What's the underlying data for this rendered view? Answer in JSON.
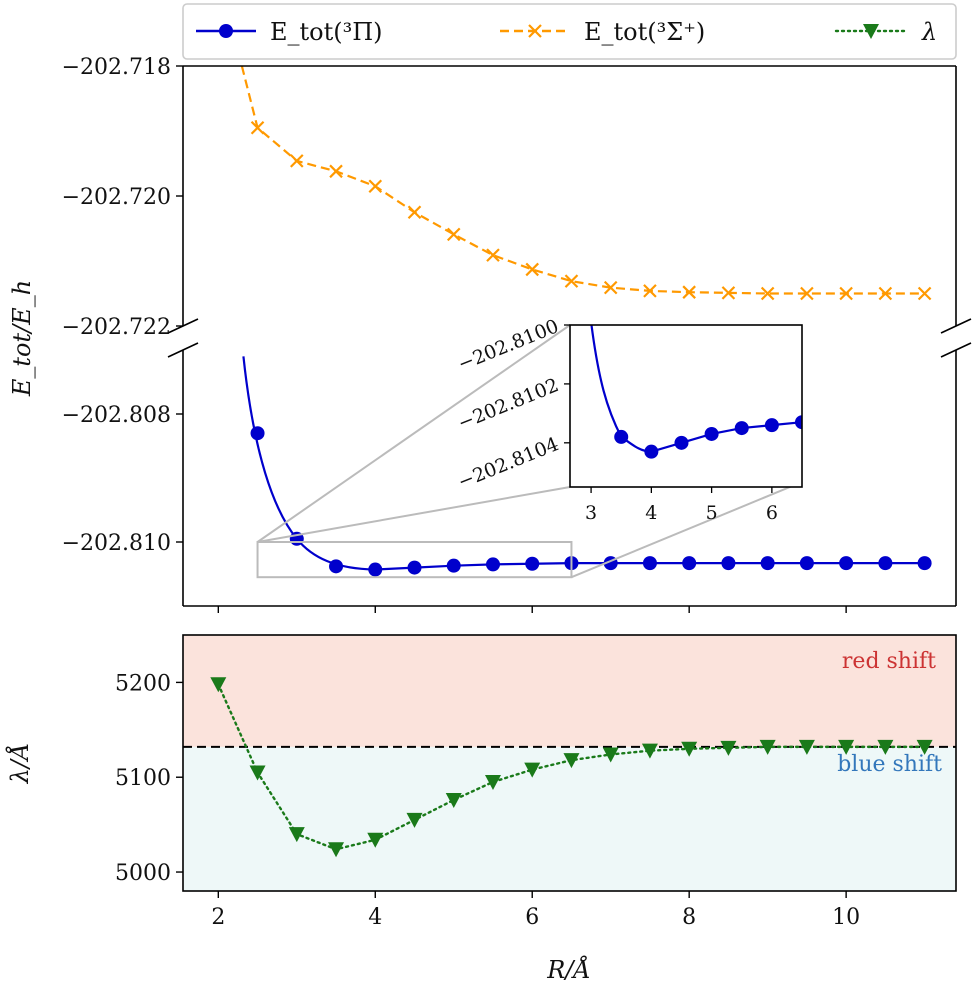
{
  "chart_data": [
    {
      "type": "line",
      "panel": "top",
      "ylabel": "E_tot/E_h",
      "legend": [
        {
          "label": "E_tot(³Π)",
          "color": "#0000cc",
          "marker": "circle",
          "style": "solid"
        },
        {
          "label": "E_tot(³Σ⁺)",
          "color": "#ff9900",
          "marker": "x",
          "style": "dashed"
        },
        {
          "label": "λ",
          "color": "#1a7a1a",
          "marker": "triangle-down",
          "style": "dotted"
        }
      ],
      "legend_position": "top",
      "broken_axis": true,
      "upper_segment": {
        "ylim": [
          -202.722,
          -202.718
        ],
        "yticks": [
          "−202.718",
          "−202.720",
          "−202.722"
        ],
        "series": [
          {
            "name": "E_tot(³Σ⁺)",
            "color": "#ff9900",
            "x": [
              2.5,
              3.0,
              3.5,
              4.0,
              4.5,
              5.0,
              5.5,
              6.0,
              6.5,
              7.0,
              7.5,
              8.0,
              8.5,
              9.0,
              9.5,
              10.0,
              10.5,
              11.0
            ],
            "values": [
              -202.71895,
              -202.71946,
              -202.71962,
              -202.71985,
              -202.72025,
              -202.72059,
              -202.72091,
              -202.72113,
              -202.72131,
              -202.72141,
              -202.72146,
              -202.72148,
              -202.72149,
              -202.7215,
              -202.7215,
              -202.7215,
              -202.7215,
              -202.7215
            ],
            "curve_start": {
              "x": 2.3,
              "y": -202.718
            }
          }
        ]
      },
      "lower_segment": {
        "ylim": [
          -202.811,
          -202.807
        ],
        "yticks": [
          "−202.808",
          "−202.810"
        ],
        "series": [
          {
            "name": "E_tot(³Π)",
            "color": "#0000cc",
            "x": [
              2.5,
              3.0,
              3.5,
              4.0,
              4.5,
              5.0,
              5.5,
              6.0,
              6.5,
              7.0,
              7.5,
              8.0,
              8.5,
              9.0,
              9.5,
              10.0,
              10.5,
              11.0
            ],
            "values": [
              -202.8083,
              -202.80995,
              -202.81038,
              -202.81043,
              -202.8104,
              -202.81037,
              -202.81035,
              -202.81034,
              -202.81033,
              -202.81033,
              -202.81033,
              -202.81033,
              -202.81033,
              -202.81033,
              -202.81033,
              -202.81033,
              -202.81033,
              -202.81033
            ]
          }
        ]
      },
      "inset": {
        "xlim": [
          2.65,
          6.5
        ],
        "ylim": [
          -202.81055,
          -202.81
        ],
        "xticks": [
          "3",
          "4",
          "5",
          "6"
        ],
        "yticks": [
          "−202.8100",
          "−202.8102",
          "−202.8104"
        ],
        "points_x": [
          3.5,
          4.0,
          4.5,
          5.0,
          5.5,
          6.0,
          6.5
        ],
        "points_y": [
          -202.81038,
          -202.81043,
          -202.8104,
          -202.81037,
          -202.81035,
          -202.81034,
          -202.81033
        ]
      }
    },
    {
      "type": "line",
      "panel": "bottom",
      "xlabel": "R/Å",
      "ylabel": "λ/Å",
      "xlim": [
        1.55,
        11.4
      ],
      "ylim": [
        4980,
        5250
      ],
      "xticks": [
        "2",
        "4",
        "6",
        "8",
        "10"
      ],
      "yticks": [
        "5000",
        "5100",
        "5200"
      ],
      "reference_line": 5132,
      "regions": [
        {
          "label": "red shift",
          "color": "#fbe3dc",
          "text_color": "#cc3333"
        },
        {
          "label": "blue shift",
          "color": "#eef8f8",
          "text_color": "#3377bb"
        }
      ],
      "series": [
        {
          "name": "λ",
          "color": "#1a7a1a",
          "x": [
            2.0,
            2.5,
            3.0,
            3.5,
            4.0,
            4.5,
            5.0,
            5.5,
            6.0,
            6.5,
            7.0,
            7.5,
            8.0,
            8.5,
            9.0,
            9.5,
            10.0,
            10.5,
            11.0
          ],
          "values": [
            5198,
            5105,
            5040,
            5024,
            5034,
            5055,
            5076,
            5095,
            5108,
            5118,
            5124,
            5128,
            5130,
            5131,
            5132,
            5132,
            5132,
            5132,
            5132
          ]
        }
      ]
    }
  ]
}
